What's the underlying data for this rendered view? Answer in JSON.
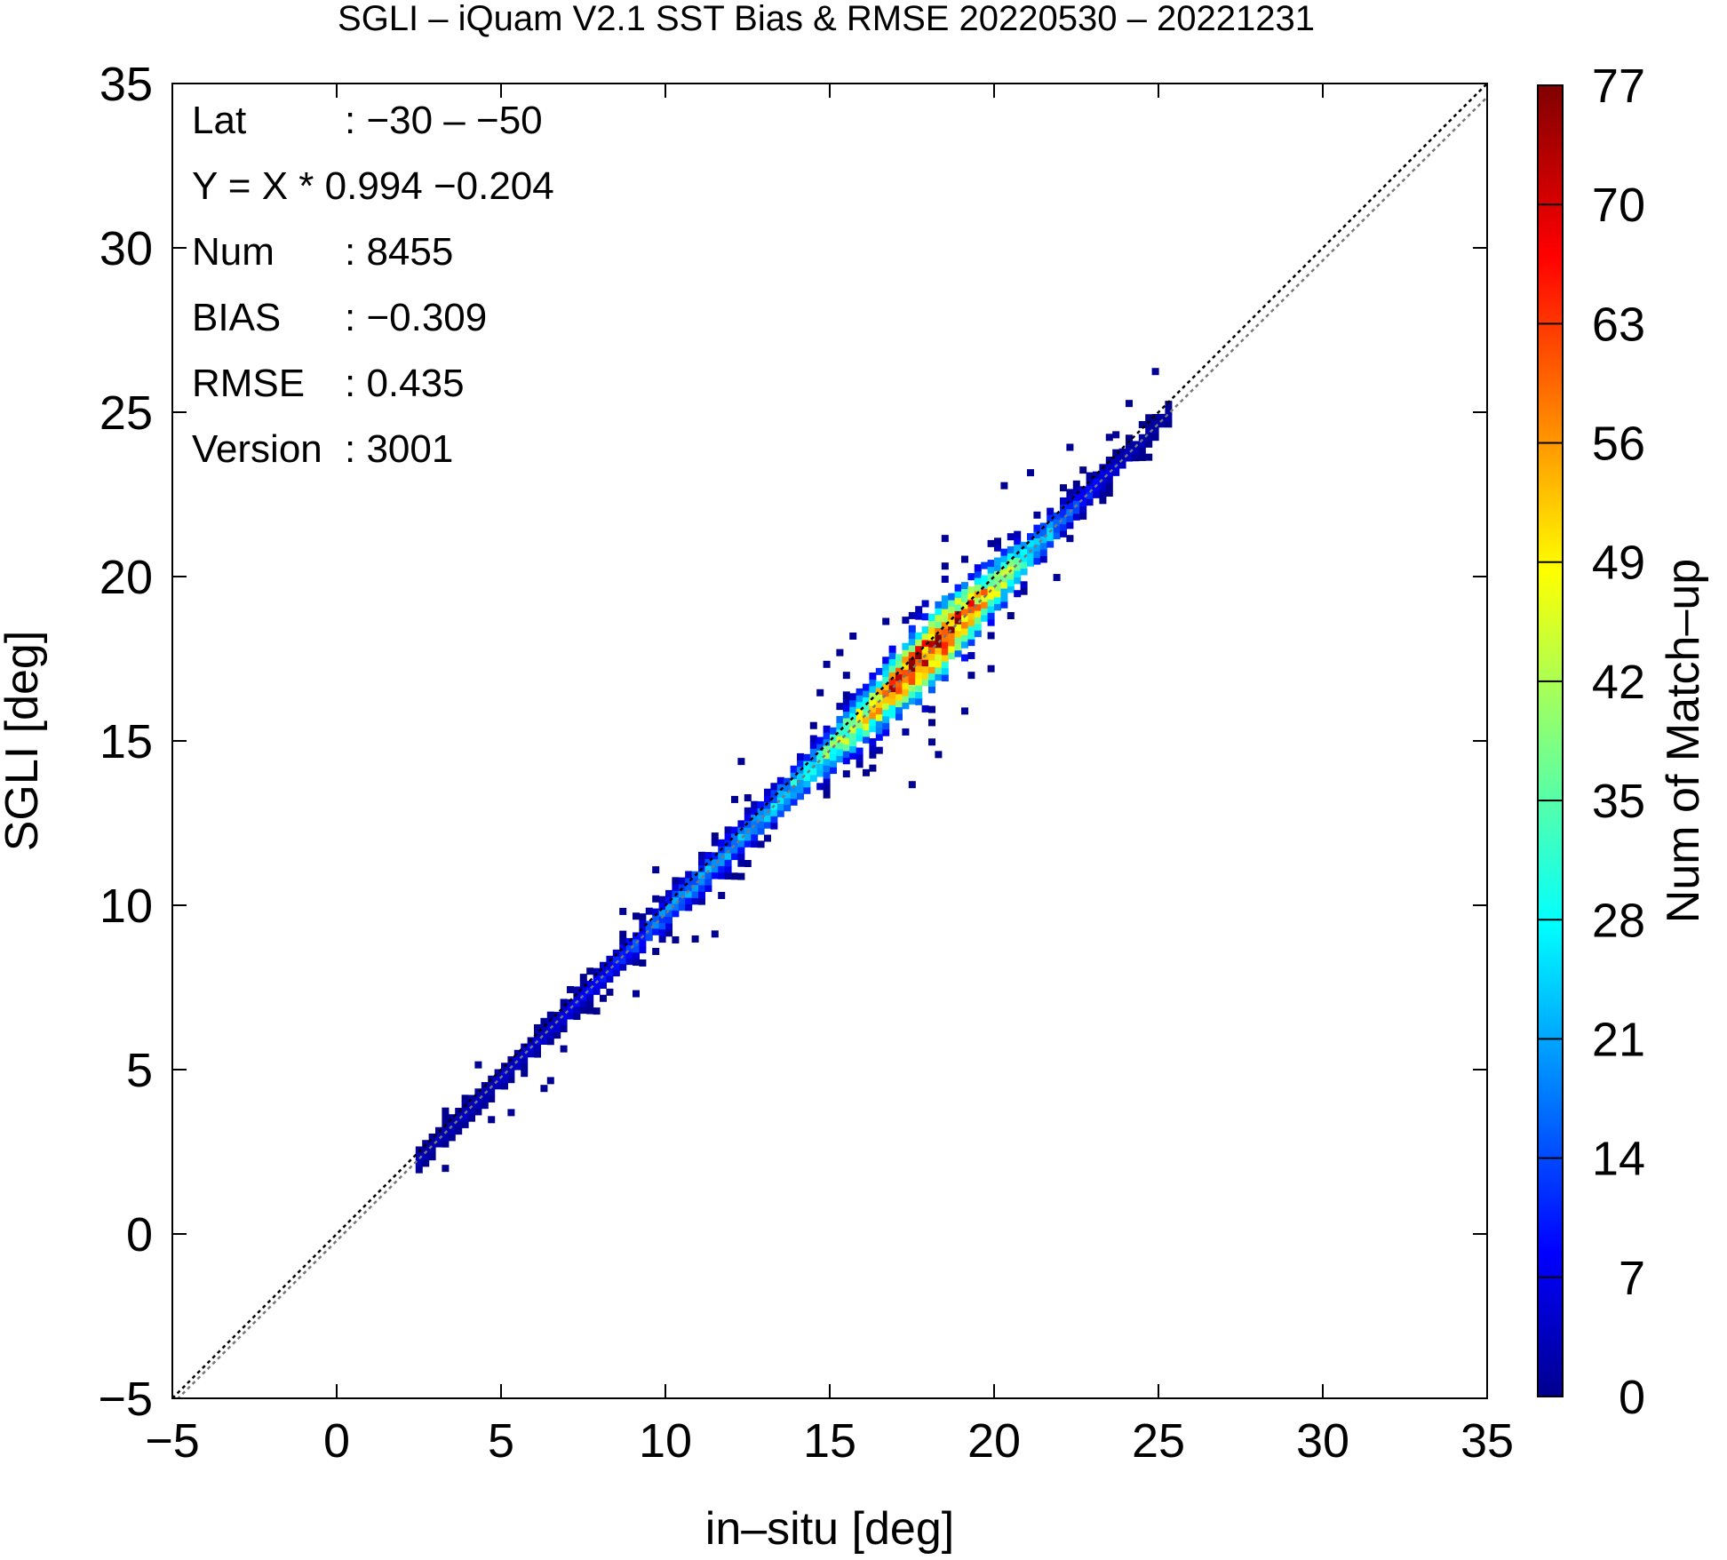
{
  "chart_data": {
    "type": "heatmap",
    "title": "SGLI – iQuam V2.1 SST Bias & RMSE 20220530 – 20221231",
    "xlabel": "in–situ [deg]",
    "ylabel": "SGLI [deg]",
    "xlim": [
      -5,
      35
    ],
    "ylim": [
      -5,
      35
    ],
    "x_ticks": [
      "−5",
      "0",
      "5",
      "10",
      "15",
      "20",
      "25",
      "30",
      "35"
    ],
    "y_ticks": [
      "−5",
      "0",
      "5",
      "10",
      "15",
      "20",
      "25",
      "30",
      "35"
    ],
    "grid": false,
    "stats": [
      {
        "label": "Lat",
        "value": ": −30 – −50"
      },
      {
        "label": "Y = X * 0.994 −0.204",
        "value": ""
      },
      {
        "label": "Num",
        "value": ": 8455"
      },
      {
        "label": "BIAS",
        "value": ": −0.309"
      },
      {
        "label": "RMSE",
        "value": ": 0.435"
      },
      {
        "label": "Version",
        "value": ": 3001"
      }
    ],
    "regression": {
      "slope": 0.994,
      "intercept": -0.204
    },
    "reference_lines": [
      "y = x",
      "regression fit"
    ],
    "colorbar": {
      "label": "Num of Match–up",
      "range": [
        0,
        77
      ],
      "ticks": [
        "0",
        "7",
        "14",
        "21",
        "28",
        "35",
        "42",
        "49",
        "56",
        "63",
        "70",
        "77"
      ],
      "colormap": "jet"
    },
    "density_ridge": [
      {
        "x": 2.5,
        "count": 4
      },
      {
        "x": 4.0,
        "count": 5
      },
      {
        "x": 5.5,
        "count": 6
      },
      {
        "x": 7.0,
        "count": 8
      },
      {
        "x": 8.5,
        "count": 12
      },
      {
        "x": 10.0,
        "count": 20
      },
      {
        "x": 11.5,
        "count": 22
      },
      {
        "x": 13.0,
        "count": 24
      },
      {
        "x": 14.5,
        "count": 32
      },
      {
        "x": 16.0,
        "count": 50
      },
      {
        "x": 17.5,
        "count": 70
      },
      {
        "x": 18.5,
        "count": 74
      },
      {
        "x": 19.5,
        "count": 58
      },
      {
        "x": 21.0,
        "count": 34
      },
      {
        "x": 22.5,
        "count": 14
      },
      {
        "x": 24.0,
        "count": 5
      },
      {
        "x": 25.0,
        "count": 3
      }
    ],
    "x_extent": [
      2.5,
      25.3
    ]
  }
}
